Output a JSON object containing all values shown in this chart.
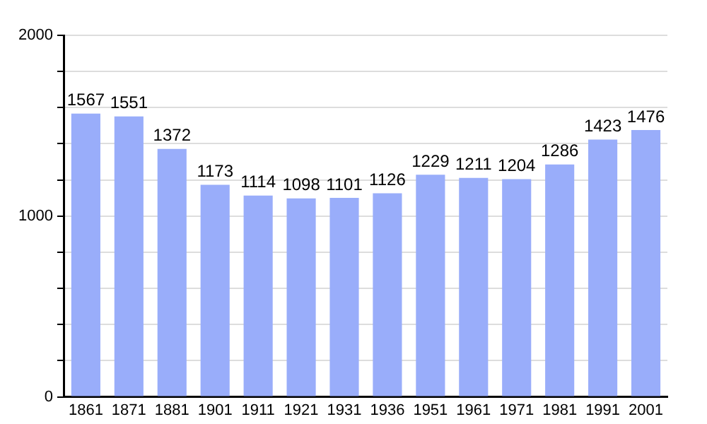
{
  "chart_data": {
    "type": "bar",
    "categories": [
      "1861",
      "1871",
      "1881",
      "1901",
      "1911",
      "1921",
      "1931",
      "1936",
      "1951",
      "1961",
      "1971",
      "1981",
      "1991",
      "2001"
    ],
    "values": [
      1567,
      1551,
      1372,
      1173,
      1114,
      1098,
      1101,
      1126,
      1229,
      1211,
      1204,
      1286,
      1423,
      1476
    ],
    "color": "#99adfa",
    "ylim": [
      0,
      2000
    ],
    "yticks": [
      0,
      {
        "value": 200,
        "label": null
      },
      {
        "value": 400,
        "label": null
      },
      {
        "value": 600,
        "label": null
      },
      {
        "value": 800,
        "label": null
      },
      1000,
      {
        "value": 1200,
        "label": null
      },
      {
        "value": 1400,
        "label": null
      },
      {
        "value": 1600,
        "label": null
      },
      {
        "value": 1800,
        "label": null
      },
      2000
    ],
    "grid": "y",
    "data_labels": true,
    "legend": false
  }
}
